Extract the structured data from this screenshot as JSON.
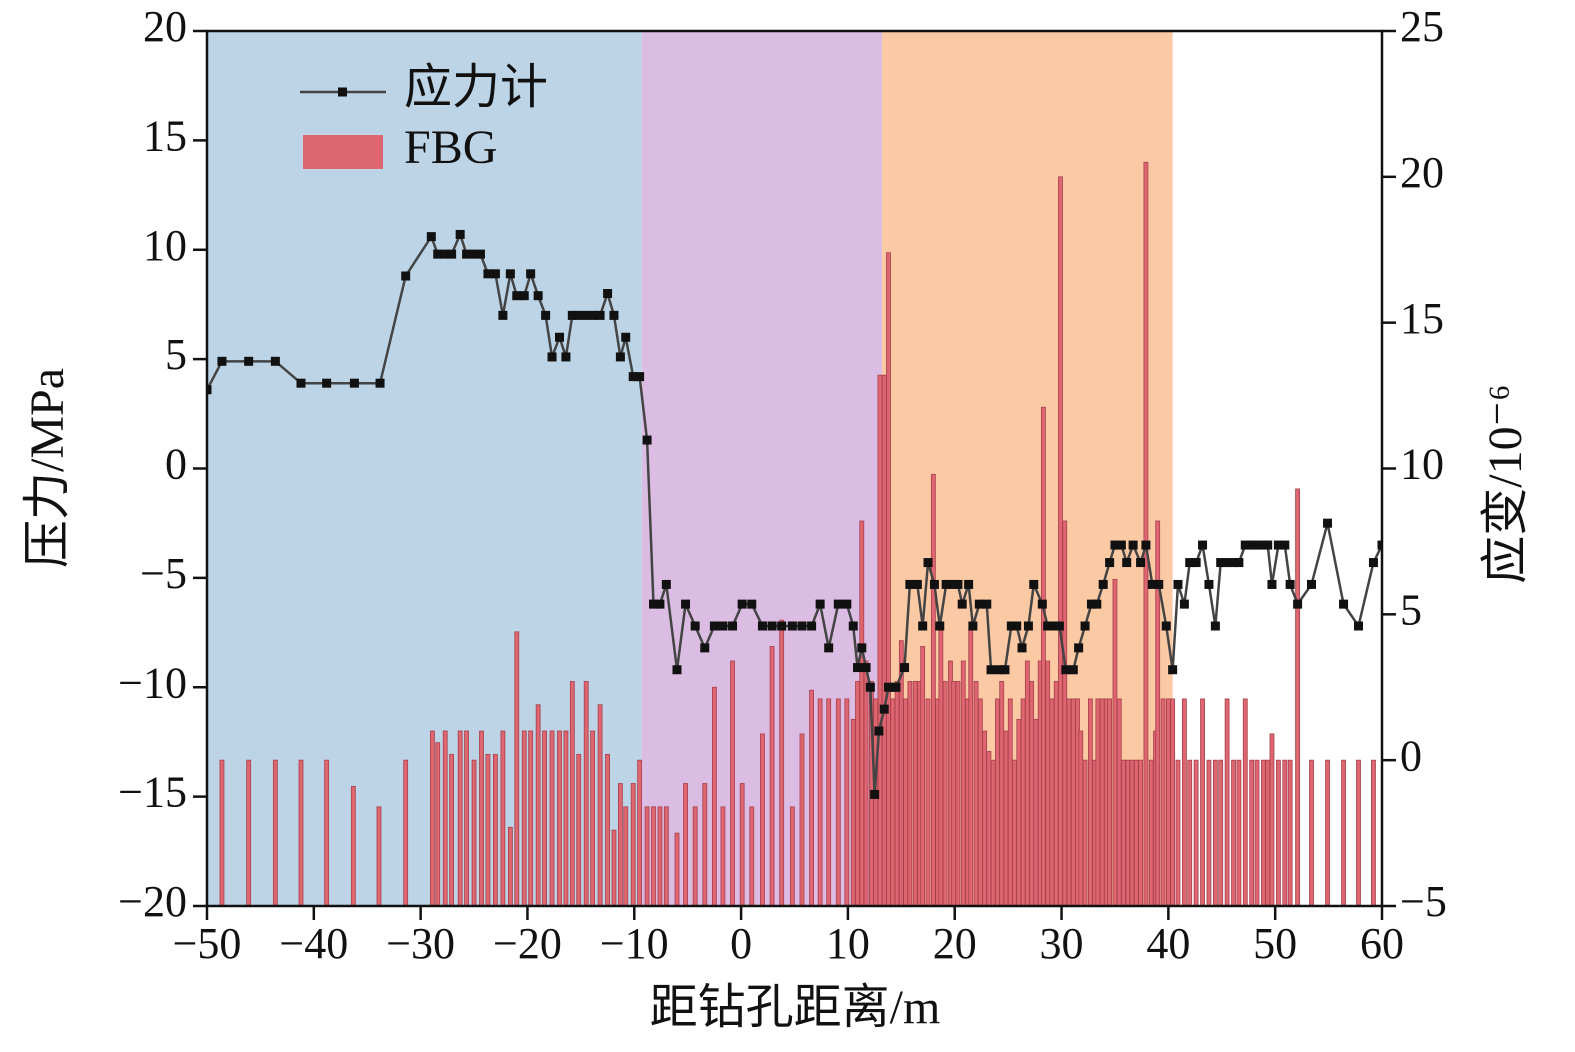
{
  "chart_data": {
    "type": "combo",
    "xlabel": "距钻孔距离/m",
    "ylabel": "压力/MPa",
    "y2label": "应变/10⁻⁶",
    "xlim": [
      -50,
      60
    ],
    "xticks": [
      {
        "value": -50,
        "label": "−50"
      },
      {
        "value": -40,
        "label": "−40"
      },
      {
        "value": -30,
        "label": "−30"
      },
      {
        "value": -20,
        "label": "−20"
      },
      {
        "value": -10,
        "label": "−10"
      },
      0,
      10,
      20,
      30,
      40,
      50,
      60
    ],
    "ylim": [
      -20,
      20
    ],
    "yticks": [
      {
        "value": -20,
        "label": "−20"
      },
      {
        "value": -15,
        "label": "−15"
      },
      {
        "value": -10,
        "label": "−10"
      },
      {
        "value": -5,
        "label": "−5"
      },
      0,
      5,
      10,
      15,
      20
    ],
    "y2lim": [
      -5,
      25
    ],
    "y2ticks": [
      {
        "value": -5,
        "label": "−5"
      },
      0,
      5,
      10,
      15,
      20,
      25
    ],
    "legend": "upper left",
    "regions": [
      {
        "x": [
          -50,
          -9.3
        ],
        "color": "#bcd4e6"
      },
      {
        "x": [
          -9.3,
          13.2
        ],
        "color": "#dbbde3"
      },
      {
        "x": [
          13.2,
          40.4
        ],
        "color": "#fbc9a4"
      }
    ],
    "series": [
      {
        "name": "应力计",
        "type": "line",
        "color": "#444444",
        "marker_color": "#111111",
        "x": [
          -50,
          -48.6,
          -46.1,
          -43.6,
          -41.2,
          -38.8,
          -36.2,
          -33.8,
          -31.4,
          -29.0,
          -28.4,
          -27.7,
          -27.1,
          -26.3,
          -25.7,
          -25.0,
          -24.4,
          -23.7,
          -23.0,
          -22.3,
          -21.6,
          -21.0,
          -20.3,
          -19.7,
          -19.0,
          -18.3,
          -17.7,
          -17.0,
          -16.4,
          -15.8,
          -15.2,
          -14.5,
          -13.8,
          -13.2,
          -12.5,
          -11.9,
          -11.3,
          -10.8,
          -10.1,
          -9.5,
          -8.8,
          -8.2,
          -7.6,
          -7.0,
          -6.0,
          -5.2,
          -4.3,
          -3.4,
          -2.5,
          -1.7,
          -0.8,
          0.1,
          1.0,
          2.0,
          2.9,
          3.8,
          4.8,
          5.7,
          6.6,
          7.4,
          8.2,
          9.1,
          9.9,
          10.5,
          10.9,
          11.3,
          11.7,
          12.1,
          12.5,
          12.9,
          13.4,
          13.8,
          14.2,
          14.5,
          15.3,
          15.8,
          16.5,
          17.0,
          17.5,
          18.1,
          18.6,
          19.2,
          19.8,
          20.3,
          20.7,
          21.3,
          21.7,
          22.3,
          23.0,
          23.4,
          24.2,
          24.7,
          25.3,
          25.8,
          26.3,
          26.9,
          27.4,
          28.2,
          28.7,
          29.3,
          29.8,
          30.4,
          31.1,
          31.6,
          32.2,
          32.8,
          33.3,
          33.9,
          34.5,
          35.0,
          35.6,
          36.1,
          36.7,
          37.4,
          37.9,
          38.5,
          39.1,
          39.8,
          40.4,
          40.9,
          41.5,
          42.0,
          42.6,
          43.2,
          43.8,
          44.4,
          44.9,
          45.5,
          46.1,
          46.6,
          47.2,
          47.8,
          48.3,
          48.9,
          49.3,
          49.7,
          50.3,
          50.9,
          51.4,
          52.1,
          53.4,
          54.9,
          56.4,
          57.8,
          59.2,
          60
        ],
        "values": [
          3.6,
          4.9,
          4.9,
          4.9,
          3.9,
          3.9,
          3.9,
          3.9,
          8.8,
          10.6,
          9.8,
          9.8,
          9.8,
          10.7,
          9.8,
          9.8,
          9.8,
          8.9,
          8.9,
          7.0,
          8.9,
          7.9,
          7.9,
          8.9,
          7.9,
          7.0,
          5.1,
          6.0,
          5.1,
          7.0,
          7.0,
          7.0,
          7.0,
          7.0,
          8.0,
          7.0,
          5.1,
          6.0,
          4.2,
          4.2,
          1.3,
          -6.2,
          -6.2,
          -5.3,
          -9.2,
          -6.2,
          -7.2,
          -8.2,
          -7.2,
          -7.2,
          -7.2,
          -6.2,
          -6.2,
          -7.2,
          -7.2,
          -7.2,
          -7.2,
          -7.2,
          -7.2,
          -6.2,
          -8.2,
          -6.2,
          -6.2,
          -7.2,
          -9.1,
          -8.2,
          -9.1,
          -10.0,
          -14.9,
          -12.0,
          -11.0,
          -10.0,
          -10.0,
          -10.0,
          -9.1,
          -5.3,
          -5.3,
          -7.2,
          -4.3,
          -5.3,
          -7.2,
          -5.3,
          -5.3,
          -5.3,
          -6.2,
          -5.3,
          -7.2,
          -6.2,
          -6.2,
          -9.2,
          -9.2,
          -9.2,
          -7.2,
          -7.2,
          -8.2,
          -7.2,
          -5.3,
          -6.2,
          -7.2,
          -7.2,
          -7.2,
          -9.2,
          -9.2,
          -8.2,
          -7.2,
          -6.2,
          -6.2,
          -5.3,
          -4.3,
          -3.5,
          -3.5,
          -4.3,
          -3.5,
          -4.3,
          -3.5,
          -5.3,
          -5.3,
          -7.2,
          -9.2,
          -5.3,
          -6.2,
          -4.3,
          -4.3,
          -3.5,
          -5.3,
          -7.2,
          -4.3,
          -4.3,
          -4.3,
          -4.3,
          -3.5,
          -3.5,
          -3.5,
          -3.5,
          -3.5,
          -5.3,
          -3.5,
          -3.5,
          -5.3,
          -6.2,
          -5.3,
          -2.5,
          -6.2,
          -7.2,
          -4.3,
          -3.5
        ]
      },
      {
        "name": "FBG",
        "type": "bar",
        "axis": "y2",
        "color": "#dd6670",
        "edge_color": "#a8404c",
        "x": [
          -48.6,
          -46.1,
          -43.6,
          -41.2,
          -38.8,
          -36.3,
          -33.9,
          -31.4,
          -28.9,
          -28.4,
          -27.7,
          -27.1,
          -26.3,
          -25.7,
          -25.0,
          -24.3,
          -23.7,
          -23.0,
          -22.3,
          -21.6,
          -21.0,
          -20.3,
          -19.7,
          -19.0,
          -18.4,
          -17.7,
          -17.0,
          -16.4,
          -15.8,
          -15.2,
          -14.5,
          -13.9,
          -13.2,
          -12.5,
          -11.9,
          -11.3,
          -10.8,
          -10.1,
          -9.5,
          -8.8,
          -8.2,
          -7.6,
          -7.0,
          -6.0,
          -5.2,
          -4.3,
          -3.4,
          -2.5,
          -1.7,
          -0.8,
          0.1,
          1.0,
          2.0,
          2.9,
          3.8,
          4.8,
          5.7,
          6.6,
          7.4,
          8.2,
          9.1,
          9.9,
          10.5,
          10.9,
          11.3,
          11.7,
          12.2,
          12.6,
          13.0,
          13.4,
          13.8,
          14.2,
          14.6,
          15.0,
          15.4,
          15.8,
          16.3,
          16.7,
          17.0,
          17.5,
          18.0,
          18.4,
          18.7,
          19.1,
          19.6,
          19.9,
          20.3,
          20.8,
          21.2,
          21.5,
          22.0,
          22.4,
          22.8,
          23.2,
          23.6,
          24.0,
          24.4,
          24.8,
          25.2,
          25.6,
          26.0,
          26.4,
          26.8,
          27.2,
          27.6,
          28.0,
          28.3,
          28.7,
          29.1,
          29.5,
          29.9,
          30.3,
          30.7,
          31.1,
          31.5,
          31.8,
          32.2,
          32.7,
          33.1,
          33.4,
          33.8,
          34.2,
          34.5,
          35.0,
          35.4,
          35.8,
          36.2,
          36.6,
          37.0,
          37.4,
          37.9,
          38.4,
          38.8,
          39.0,
          39.5,
          40.0,
          40.4,
          40.9,
          41.5,
          42.0,
          42.6,
          43.2,
          43.8,
          44.4,
          44.9,
          45.5,
          46.1,
          46.6,
          47.2,
          47.8,
          48.3,
          48.9,
          49.3,
          49.7,
          50.3,
          50.9,
          51.4,
          52.1,
          53.4,
          54.9,
          56.4,
          57.8,
          59.2
        ],
        "values": [
          0,
          0,
          0,
          0,
          0,
          -0.9,
          -1.6,
          0,
          1.0,
          0.6,
          1.0,
          0.2,
          1.0,
          1.0,
          0,
          1.0,
          0.2,
          0.2,
          1.0,
          -2.3,
          4.4,
          1.0,
          1.0,
          1.9,
          1.0,
          1.0,
          1.0,
          1.0,
          2.7,
          0.2,
          2.7,
          1.0,
          1.9,
          0.2,
          -2.4,
          -0.8,
          -1.6,
          -0.8,
          0,
          -1.6,
          -1.6,
          -1.6,
          -1.6,
          -2.5,
          -0.8,
          -1.6,
          -0.8,
          2.5,
          -1.6,
          3.4,
          -0.8,
          -1.6,
          0.9,
          3.9,
          4.8,
          -1.6,
          0.9,
          2.4,
          2.1,
          2.1,
          2.1,
          2.1,
          1.4,
          2.7,
          8.2,
          3.4,
          2.7,
          2.1,
          13.2,
          13.2,
          17.4,
          2.1,
          2.7,
          4.1,
          2.1,
          2.7,
          2.7,
          2.7,
          3.9,
          2.1,
          9.8,
          2.1,
          4.6,
          2.7,
          3.4,
          2.7,
          2.7,
          3.4,
          2.1,
          4.5,
          2.7,
          2.1,
          1.0,
          0.3,
          0,
          2.1,
          2.7,
          1.0,
          2.1,
          0,
          1.4,
          2.1,
          3.4,
          2.7,
          1.4,
          3.4,
          12.1,
          3.4,
          2.1,
          2.7,
          20.0,
          8.2,
          2.1,
          2.1,
          2.1,
          1.0,
          0,
          2.1,
          0,
          2.1,
          2.1,
          2.1,
          2.1,
          6.2,
          2.1,
          0,
          0,
          0,
          0,
          0,
          20.5,
          0,
          1.0,
          8.2,
          2.1,
          2.1,
          2.1,
          0,
          2.1,
          0,
          0,
          2.1,
          0,
          0,
          0,
          2.1,
          0,
          0,
          2.1,
          0,
          0,
          0,
          0,
          0.9,
          0,
          0,
          0,
          9.3,
          0,
          0,
          0,
          0,
          0
        ]
      }
    ]
  }
}
